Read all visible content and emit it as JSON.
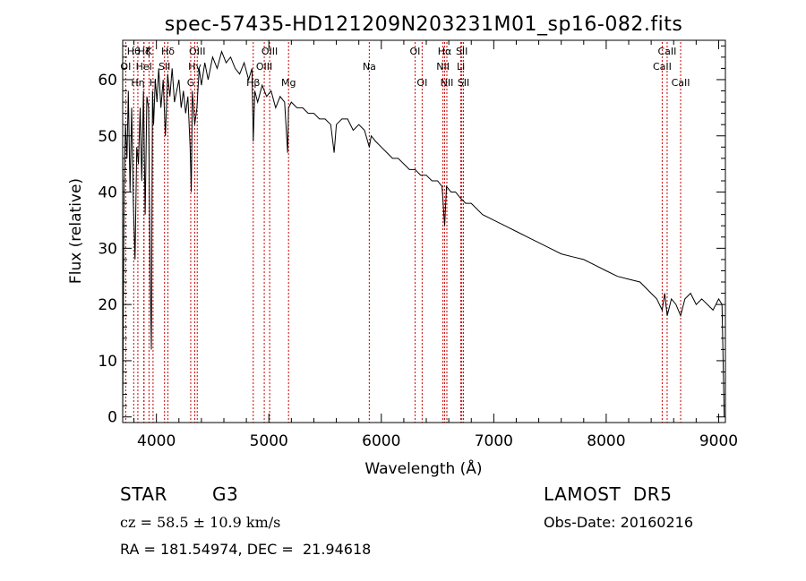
{
  "chart_data": {
    "type": "line",
    "title": "spec-57435-HD121209N203231M01_sp16-082.fits",
    "xlabel": "Wavelength (Å)",
    "ylabel": "Flux (relative)",
    "xlim": [
      3700,
      9060
    ],
    "ylim": [
      -1,
      67
    ],
    "xticks": [
      4000,
      5000,
      6000,
      7000,
      8000,
      9000
    ],
    "yticks": [
      0,
      10,
      20,
      30,
      40,
      50,
      60
    ],
    "grid": false,
    "series": [
      {
        "x": [
          3700,
          3712,
          3725,
          3738,
          3750,
          3765,
          3780,
          3795,
          3810,
          3825,
          3840,
          3855,
          3870,
          3885,
          3900,
          3915,
          3930,
          3945,
          3955,
          3965,
          3975,
          3990,
          4005,
          4020,
          4040,
          4060,
          4080,
          4100,
          4120,
          4140,
          4160,
          4180,
          4200,
          4220,
          4240,
          4260,
          4280,
          4300,
          4310,
          4320,
          4340,
          4360,
          4380,
          4400,
          4430,
          4460,
          4500,
          4540,
          4580,
          4620,
          4660,
          4700,
          4740,
          4780,
          4820,
          4850,
          4861,
          4875,
          4900,
          4940,
          4980,
          5020,
          5060,
          5100,
          5140,
          5167,
          5175,
          5200,
          5250,
          5300,
          5350,
          5400,
          5450,
          5500,
          5550,
          5580,
          5600,
          5650,
          5700,
          5750,
          5800,
          5850,
          5893,
          5910,
          5950,
          6000,
          6050,
          6100,
          6150,
          6200,
          6250,
          6300,
          6350,
          6400,
          6450,
          6500,
          6540,
          6563,
          6580,
          6620,
          6660,
          6700,
          6750,
          6800,
          6900,
          7000,
          7100,
          7200,
          7300,
          7400,
          7500,
          7600,
          7700,
          7800,
          7900,
          8000,
          8100,
          8200,
          8300,
          8400,
          8450,
          8498,
          8520,
          8542,
          8580,
          8620,
          8662,
          8700,
          8750,
          8800,
          8850,
          8900,
          8950,
          9000,
          9030,
          9050
        ],
        "values": [
          0,
          40,
          52,
          46,
          58,
          40,
          55,
          38,
          28,
          48,
          45,
          55,
          42,
          58,
          36,
          57,
          55,
          25,
          12,
          58,
          52,
          60,
          56,
          62,
          55,
          60,
          50,
          61,
          57,
          62,
          56,
          58,
          60,
          55,
          58,
          54,
          57,
          48,
          40,
          58,
          52,
          55,
          62,
          59,
          63,
          60,
          64,
          62,
          65,
          63,
          64,
          62,
          61,
          63,
          60,
          62,
          49,
          58,
          56,
          59,
          57,
          58,
          55,
          57,
          56,
          47,
          55,
          56,
          55,
          55,
          54,
          54,
          53,
          53,
          52,
          47,
          52,
          53,
          53,
          51,
          52,
          51,
          48,
          50,
          49,
          48,
          47,
          46,
          46,
          45,
          44,
          44,
          43,
          43,
          42,
          42,
          41,
          34,
          41,
          40,
          40,
          39,
          38,
          38,
          36,
          35,
          34,
          33,
          32,
          31,
          30,
          29,
          28.5,
          28,
          27,
          26,
          25,
          24.5,
          24,
          22,
          21,
          19,
          22,
          18,
          21,
          20,
          18,
          21,
          22,
          20,
          21,
          20,
          19,
          21,
          20,
          0
        ]
      }
    ],
    "lines": [
      {
        "label": "OI",
        "x": 3727,
        "row": 1
      },
      {
        "label": "Hθ",
        "x": 3798,
        "row": 0
      },
      {
        "label": "Hη",
        "x": 3835,
        "row": 2
      },
      {
        "label": "Hζ",
        "x": 3889,
        "row": 0
      },
      {
        "label": "HeI",
        "x": 3889,
        "row": 1
      },
      {
        "label": "K",
        "x": 3934,
        "row": 0
      },
      {
        "label": "H",
        "x": 3970,
        "row": 2
      },
      {
        "label": "SII",
        "x": 4072,
        "row": 1
      },
      {
        "label": "Hδ",
        "x": 4102,
        "row": 0
      },
      {
        "label": "G",
        "x": 4305,
        "row": 2
      },
      {
        "label": "Hγ",
        "x": 4341,
        "row": 1
      },
      {
        "label": "OIII",
        "x": 4363,
        "row": 0
      },
      {
        "label": "Hβ",
        "x": 4861,
        "row": 2
      },
      {
        "label": "OIII",
        "x": 4959,
        "row": 1
      },
      {
        "label": "OIII",
        "x": 5007,
        "row": 0
      },
      {
        "label": "Mg",
        "x": 5175,
        "row": 2
      },
      {
        "label": "Na",
        "x": 5893,
        "row": 1
      },
      {
        "label": "OI",
        "x": 6300,
        "row": 0
      },
      {
        "label": "OI",
        "x": 6363,
        "row": 2
      },
      {
        "label": "NII",
        "x": 6548,
        "row": 1
      },
      {
        "label": "Hα",
        "x": 6563,
        "row": 0
      },
      {
        "label": "NII",
        "x": 6583,
        "row": 2
      },
      {
        "label": "Li",
        "x": 6707,
        "row": 1
      },
      {
        "label": "SII",
        "x": 6716,
        "row": 0
      },
      {
        "label": "SII",
        "x": 6731,
        "row": 2
      },
      {
        "label": "CaII",
        "x": 8498,
        "row": 1
      },
      {
        "label": "CaII",
        "x": 8542,
        "row": 0
      },
      {
        "label": "CaII",
        "x": 8662,
        "row": 2
      }
    ]
  },
  "info": {
    "class": "STAR",
    "subclass": "G3",
    "survey": "LAMOST  DR5",
    "cz": "cz = 58.5 ± 10.9 km/s",
    "obs_date": "Obs-Date: 20160216",
    "coords": "RA = 181.54974, DEC =  21.94618"
  }
}
